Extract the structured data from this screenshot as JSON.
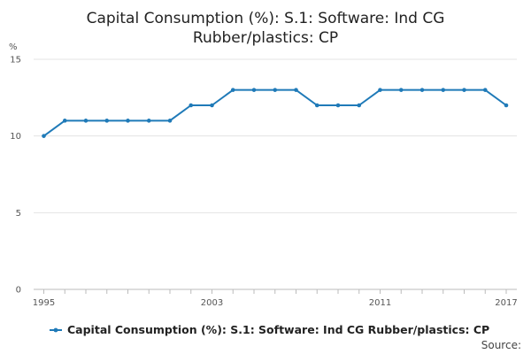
{
  "chart_data": {
    "type": "line",
    "title_lines": [
      "Capital Consumption (%): S.1: Software: Ind CG",
      "Rubber/plastics: CP"
    ],
    "ylabel": "%",
    "xlabel": "",
    "ylim": [
      0,
      15
    ],
    "yticks": [
      0,
      5,
      10,
      15
    ],
    "xlim": [
      1995,
      2017
    ],
    "xtick_labels": [
      1995,
      2003,
      2011,
      2017
    ],
    "grid": true,
    "series": [
      {
        "name": "Capital Consumption (%): S.1: Software: Ind CG Rubber/plastics: CP",
        "color": "#1f7ab8",
        "x": [
          1995,
          1996,
          1997,
          1998,
          1999,
          2000,
          2001,
          2002,
          2003,
          2004,
          2005,
          2006,
          2007,
          2008,
          2009,
          2010,
          2011,
          2012,
          2013,
          2014,
          2015,
          2016,
          2017
        ],
        "values": [
          10,
          11,
          11,
          11,
          11,
          11,
          11,
          12,
          12,
          13,
          13,
          13,
          13,
          12,
          12,
          12,
          13,
          13,
          13,
          13,
          13,
          13,
          12
        ]
      }
    ],
    "legend_position": "bottom",
    "source_label": "Source:"
  }
}
